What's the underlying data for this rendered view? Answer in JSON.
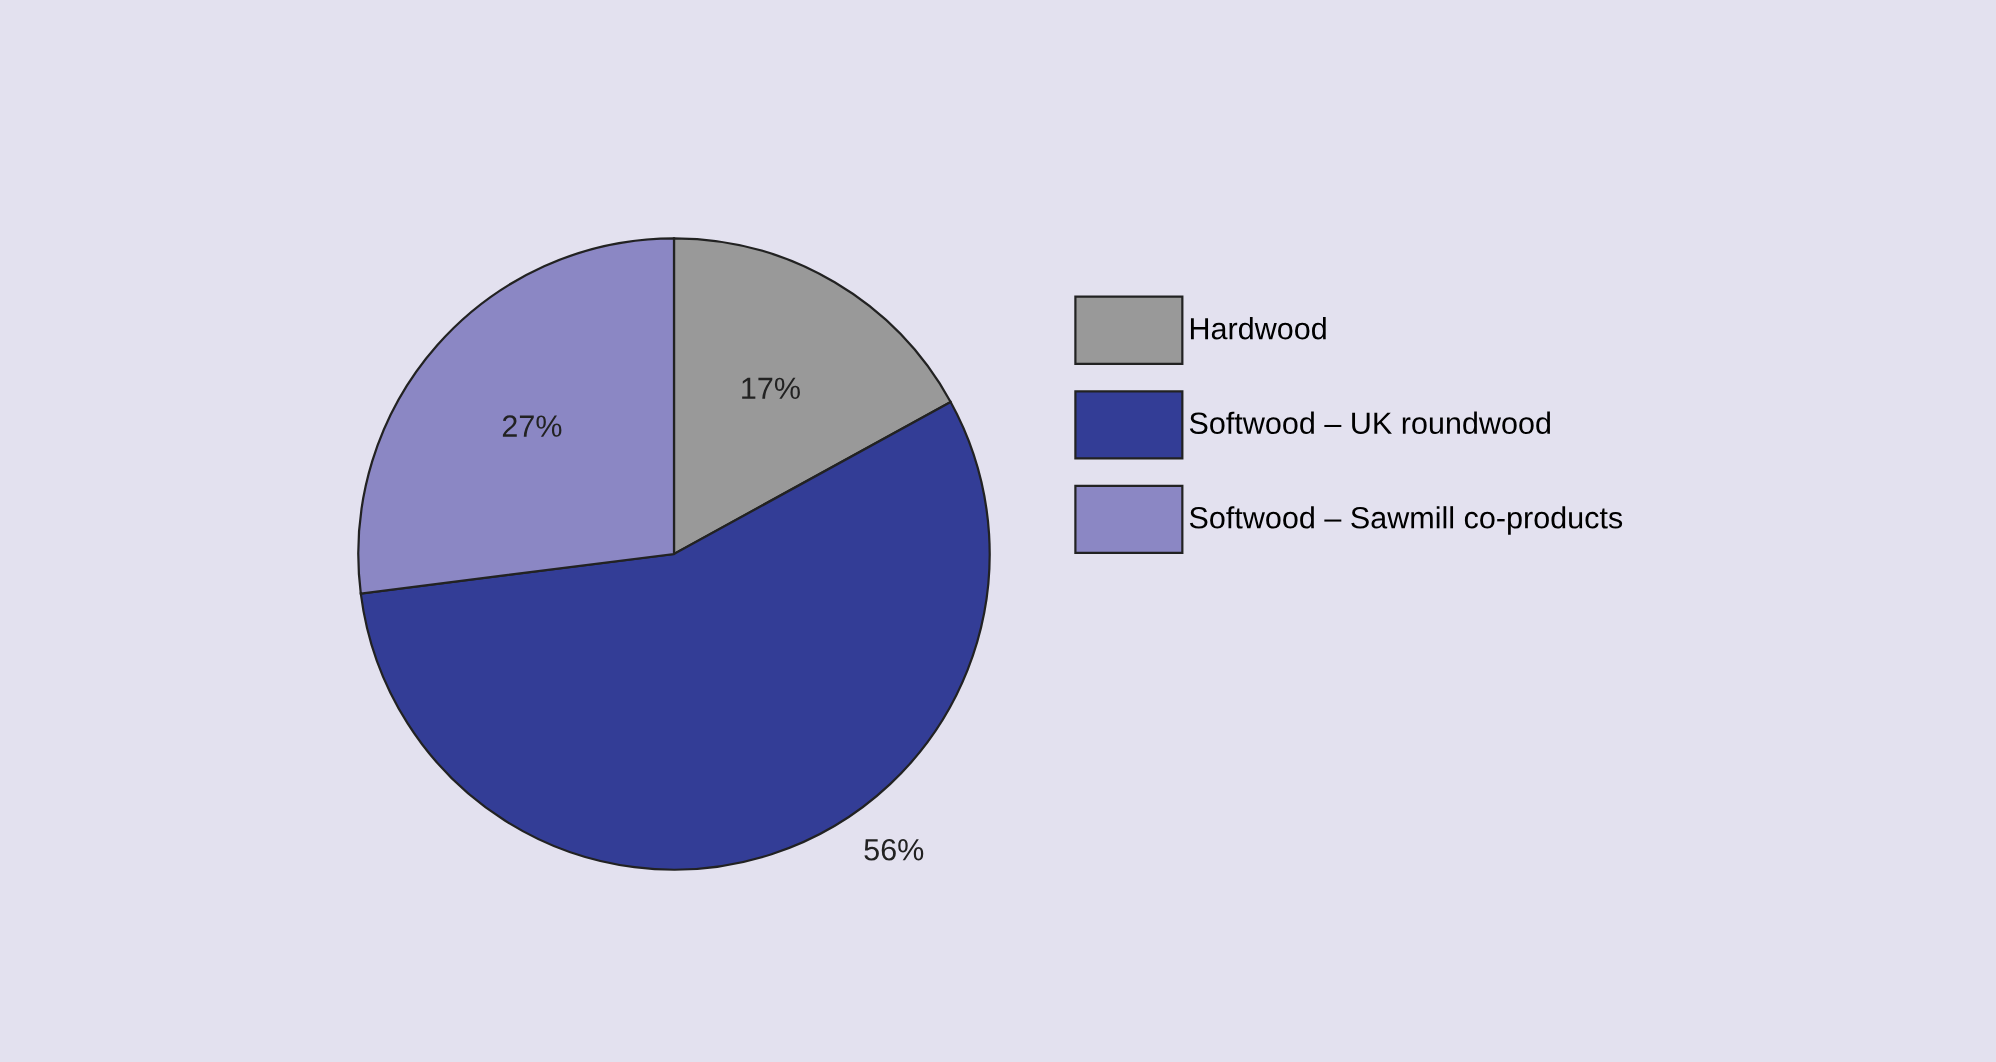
{
  "chart_data": {
    "type": "pie",
    "categories": [
      "Hardwood",
      "Softwood – UK roundwood",
      "Softwood – Sawmill co-products"
    ],
    "values": [
      17,
      56,
      27
    ],
    "colors": [
      "#999999",
      "#333d96",
      "#8b87c4"
    ],
    "value_labels": [
      "17%",
      "56%",
      "27%"
    ],
    "legend": "right"
  }
}
